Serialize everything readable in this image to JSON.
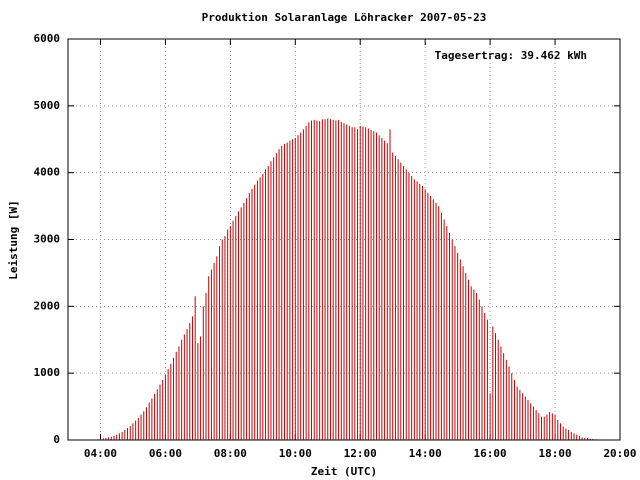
{
  "chart_data": {
    "type": "impulse",
    "title": "Produktion Solaranlage Löhracker 2007-05-23",
    "annotation": "Tagesertrag: 39.462 kWh",
    "x_label": "Zeit (UTC)",
    "y_label": "Leistung [W]",
    "color": "#cc0000",
    "grid": true,
    "xlim": [
      "03:00",
      "20:00"
    ],
    "ylim": [
      0,
      6000
    ],
    "xticks": [
      "04:00",
      "06:00",
      "08:00",
      "10:00",
      "12:00",
      "14:00",
      "16:00",
      "18:00",
      "20:00"
    ],
    "yticks": [
      0,
      1000,
      2000,
      3000,
      4000,
      5000,
      6000
    ],
    "x": [
      "03:45",
      "03:50",
      "03:55",
      "04:00",
      "04:05",
      "04:10",
      "04:15",
      "04:20",
      "04:25",
      "04:30",
      "04:35",
      "04:40",
      "04:45",
      "04:50",
      "04:55",
      "05:00",
      "05:05",
      "05:10",
      "05:15",
      "05:20",
      "05:25",
      "05:30",
      "05:35",
      "05:40",
      "05:45",
      "05:50",
      "05:55",
      "06:00",
      "06:05",
      "06:10",
      "06:15",
      "06:20",
      "06:25",
      "06:30",
      "06:35",
      "06:40",
      "06:45",
      "06:50",
      "06:55",
      "07:00",
      "07:05",
      "07:10",
      "07:15",
      "07:20",
      "07:25",
      "07:30",
      "07:35",
      "07:40",
      "07:45",
      "07:50",
      "07:55",
      "08:00",
      "08:05",
      "08:10",
      "08:15",
      "08:20",
      "08:25",
      "08:30",
      "08:35",
      "08:40",
      "08:45",
      "08:50",
      "08:55",
      "09:00",
      "09:05",
      "09:10",
      "09:15",
      "09:20",
      "09:25",
      "09:30",
      "09:35",
      "09:40",
      "09:45",
      "09:50",
      "09:55",
      "10:00",
      "10:05",
      "10:10",
      "10:15",
      "10:20",
      "10:25",
      "10:30",
      "10:35",
      "10:40",
      "10:45",
      "10:50",
      "10:55",
      "11:00",
      "11:05",
      "11:10",
      "11:15",
      "11:20",
      "11:25",
      "11:30",
      "11:35",
      "11:40",
      "11:45",
      "11:50",
      "11:55",
      "12:00",
      "12:05",
      "12:10",
      "12:15",
      "12:20",
      "12:25",
      "12:30",
      "12:35",
      "12:40",
      "12:45",
      "12:50",
      "12:55",
      "13:00",
      "13:05",
      "13:10",
      "13:15",
      "13:20",
      "13:25",
      "13:30",
      "13:35",
      "13:40",
      "13:45",
      "13:50",
      "13:55",
      "14:00",
      "14:05",
      "14:10",
      "14:15",
      "14:20",
      "14:25",
      "14:30",
      "14:35",
      "14:40",
      "14:45",
      "14:50",
      "14:55",
      "15:00",
      "15:05",
      "15:10",
      "15:15",
      "15:20",
      "15:25",
      "15:30",
      "15:35",
      "15:40",
      "15:45",
      "15:50",
      "15:55",
      "16:00",
      "16:05",
      "16:10",
      "16:15",
      "16:20",
      "16:25",
      "16:30",
      "16:35",
      "16:40",
      "16:45",
      "16:50",
      "16:55",
      "17:00",
      "17:05",
      "17:10",
      "17:15",
      "17:20",
      "17:25",
      "17:30",
      "17:35",
      "17:40",
      "17:45",
      "17:50",
      "17:55",
      "18:00",
      "18:05",
      "18:10",
      "18:15",
      "18:20",
      "18:25",
      "18:30",
      "18:35",
      "18:40",
      "18:45",
      "18:50",
      "18:55",
      "19:00",
      "19:05",
      "19:10",
      "19:15",
      "19:20",
      "19:25",
      "19:30"
    ],
    "values": [
      0,
      5,
      10,
      20,
      25,
      30,
      40,
      50,
      60,
      80,
      100,
      120,
      150,
      180,
      210,
      250,
      290,
      330,
      380,
      430,
      490,
      560,
      620,
      690,
      760,
      830,
      900,
      980,
      1060,
      1140,
      1230,
      1320,
      1400,
      1500,
      1580,
      1660,
      1750,
      1850,
      2150,
      1450,
      1550,
      2000,
      2200,
      2450,
      2550,
      2650,
      2750,
      2900,
      3000,
      3050,
      3150,
      3200,
      3280,
      3350,
      3420,
      3480,
      3550,
      3620,
      3700,
      3760,
      3820,
      3880,
      3930,
      3980,
      4050,
      4100,
      4170,
      4230,
      4290,
      4350,
      4400,
      4430,
      4450,
      4480,
      4500,
      4520,
      4560,
      4600,
      4650,
      4700,
      4750,
      4780,
      4790,
      4780,
      4770,
      4800,
      4800,
      4810,
      4800,
      4790,
      4780,
      4790,
      4760,
      4740,
      4720,
      4700,
      4680,
      4680,
      4650,
      4700,
      4690,
      4680,
      4660,
      4640,
      4620,
      4600,
      4560,
      4520,
      4480,
      4440,
      4650,
      4300,
      4250,
      4200,
      4150,
      4100,
      4050,
      4000,
      3950,
      3900,
      3870,
      3830,
      3800,
      3750,
      3700,
      3650,
      3600,
      3550,
      3500,
      3400,
      3300,
      3200,
      3100,
      3000,
      2900,
      2800,
      2700,
      2600,
      2500,
      2400,
      2300,
      2250,
      2200,
      2100,
      2000,
      1900,
      1800,
      700,
      1700,
      1600,
      1500,
      1400,
      1300,
      1200,
      1100,
      1000,
      900,
      800,
      750,
      700,
      650,
      600,
      550,
      500,
      450,
      400,
      350,
      350,
      380,
      420,
      400,
      380,
      300,
      250,
      200,
      170,
      150,
      120,
      100,
      80,
      60,
      40,
      30,
      30,
      20,
      15,
      10,
      5,
      0,
      0
    ]
  }
}
